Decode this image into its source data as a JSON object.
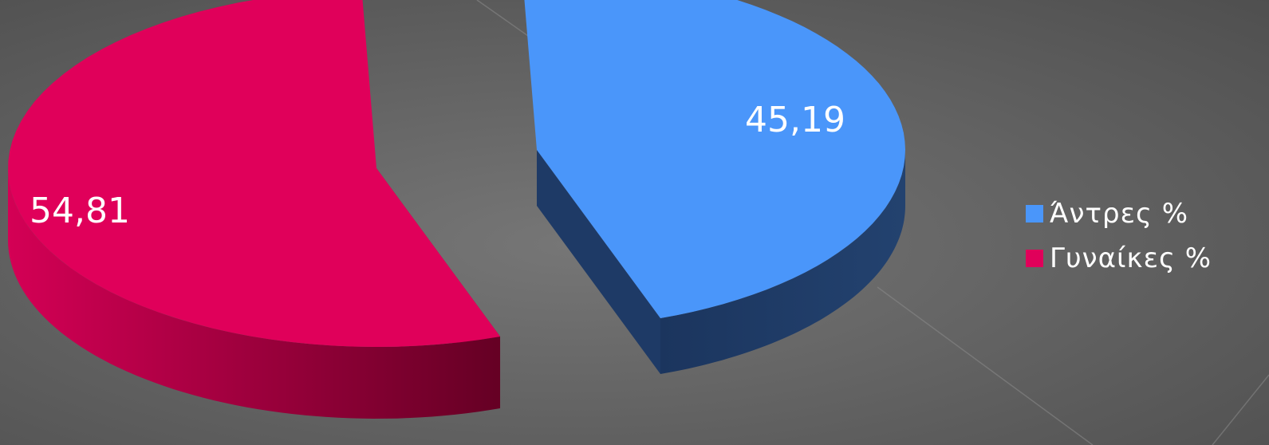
{
  "chart_data": {
    "type": "pie",
    "title": "",
    "categories": [
      "Άντρες %",
      "Γυναίκες %"
    ],
    "values": [
      45.19,
      54.81
    ],
    "value_labels": [
      "45,19",
      "54,81"
    ],
    "colors": [
      "#4a96fa",
      "#e0005a"
    ],
    "side_colors": [
      "#1e3a66",
      "#a3003f"
    ],
    "exploded": true,
    "three_d": true,
    "legend_position": "right"
  },
  "background": {
    "color": "#5f5f5f"
  }
}
